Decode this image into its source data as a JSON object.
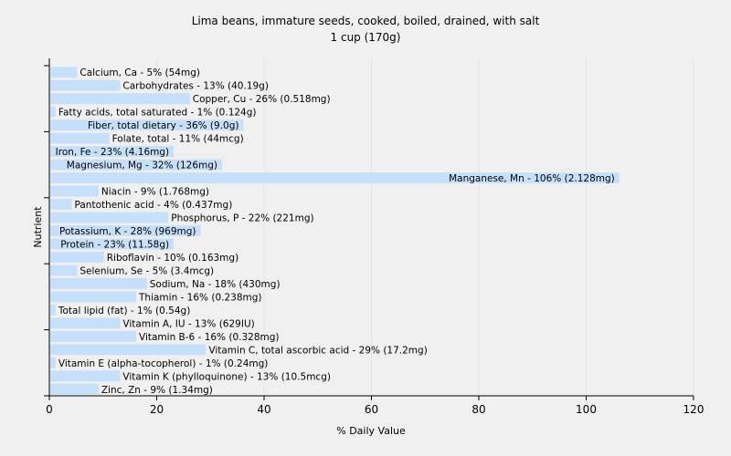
{
  "chart_data": {
    "type": "bar",
    "orientation": "horizontal",
    "title": "Lima beans, immature seeds, cooked, boiled, drained, with salt",
    "subtitle": "1 cup (170g)",
    "xlabel": "% Daily Value",
    "ylabel": "Nutrient",
    "xlim": [
      0,
      120
    ],
    "xticks": [
      0,
      20,
      40,
      60,
      80,
      100,
      120
    ],
    "grid": true,
    "legend": "none",
    "bar_color": "#c6e0fb",
    "categories": [
      "Calcium, Ca",
      "Carbohydrates",
      "Copper, Cu",
      "Fatty acids, total saturated",
      "Fiber, total dietary",
      "Folate, total",
      "Iron, Fe",
      "Magnesium, Mg",
      "Manganese, Mn",
      "Niacin",
      "Pantothenic acid",
      "Phosphorus, P",
      "Potassium, K",
      "Protein",
      "Riboflavin",
      "Selenium, Se",
      "Sodium, Na",
      "Thiamin",
      "Total lipid (fat)",
      "Vitamin A, IU",
      "Vitamin B-6",
      "Vitamin C, total ascorbic acid",
      "Vitamin E (alpha-tocopherol)",
      "Vitamin K (phylloquinone)",
      "Zinc, Zn"
    ],
    "values": [
      5,
      13,
      26,
      1,
      36,
      11,
      23,
      32,
      106,
      9,
      4,
      22,
      28,
      23,
      10,
      5,
      18,
      16,
      1,
      13,
      16,
      29,
      1,
      13,
      9
    ],
    "labels": [
      "Calcium, Ca - 5% (54mg)",
      "Carbohydrates - 13% (40.19g)",
      "Copper, Cu - 26% (0.518mg)",
      "Fatty acids, total saturated - 1% (0.124g)",
      "Fiber, total dietary - 36% (9.0g)",
      "Folate, total - 11% (44mcg)",
      "Iron, Fe - 23% (4.16mg)",
      "Magnesium, Mg - 32% (126mg)",
      "Manganese, Mn - 106% (2.128mg)",
      "Niacin - 9% (1.768mg)",
      "Pantothenic acid - 4% (0.437mg)",
      "Phosphorus, P - 22% (221mg)",
      "Potassium, K - 28% (969mg)",
      "Protein - 23% (11.58g)",
      "Riboflavin - 10% (0.163mg)",
      "Selenium, Se - 5% (3.4mcg)",
      "Sodium, Na - 18% (430mg)",
      "Thiamin - 16% (0.238mg)",
      "Total lipid (fat) - 1% (0.54g)",
      "Vitamin A, IU - 13% (629IU)",
      "Vitamin B-6 - 16% (0.328mg)",
      "Vitamin C, total ascorbic acid - 29% (17.2mg)",
      "Vitamin E (alpha-tocopherol) - 1% (0.24mg)",
      "Vitamin K (phylloquinone) - 13% (10.5mcg)",
      "Zinc, Zn - 9% (1.34mg)"
    ]
  }
}
